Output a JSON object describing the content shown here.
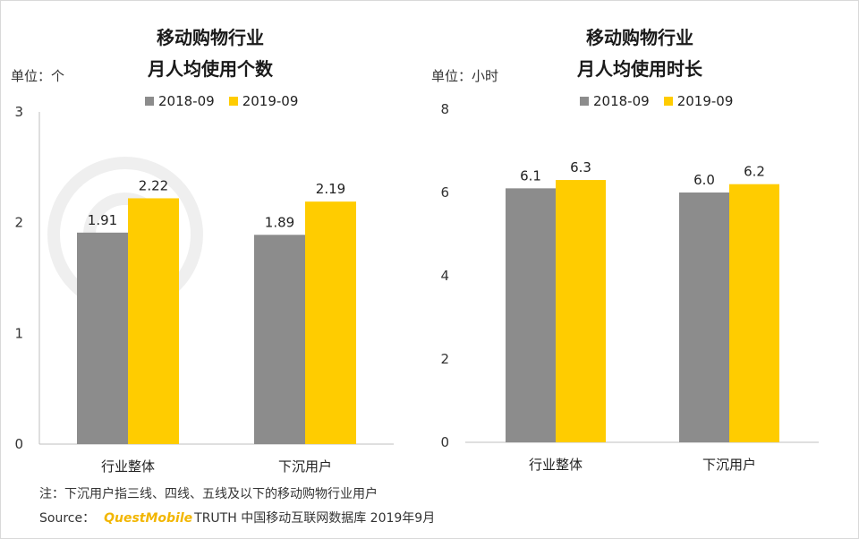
{
  "footnote": "注：下沉用户指三线、四线、五线及以下的移动购物行业用户",
  "source": {
    "prefix": "Source：",
    "brand": "QuestMobile",
    "suffix": "TRUTH 中国移动互联网数据库 2019年9月"
  },
  "colors": {
    "series_2018": "#8c8c8c",
    "series_2019": "#ffcc00"
  },
  "chart_data": [
    {
      "type": "bar",
      "title_line1": "移动购物行业",
      "title_line2": "月人均使用个数",
      "unit_label": "单位：个",
      "categories": [
        "行业整体",
        "下沉用户"
      ],
      "series": [
        {
          "name": "2018-09",
          "values": [
            1.91,
            1.89
          ],
          "labels": [
            "1.91",
            "1.89"
          ]
        },
        {
          "name": "2019-09",
          "values": [
            2.22,
            2.19
          ],
          "labels": [
            "2.22",
            "2.19"
          ]
        }
      ],
      "ylim": [
        0,
        3
      ],
      "yticks": [
        "0",
        "1",
        "2",
        "3"
      ],
      "legend": "top-center",
      "grid": false
    },
    {
      "type": "bar",
      "title_line1": "移动购物行业",
      "title_line2": "月人均使用时长",
      "unit_label": "单位：小时",
      "categories": [
        "行业整体",
        "下沉用户"
      ],
      "series": [
        {
          "name": "2018-09",
          "values": [
            6.1,
            6.0
          ],
          "labels": [
            "6.1",
            "6.0"
          ]
        },
        {
          "name": "2019-09",
          "values": [
            6.3,
            6.2
          ],
          "labels": [
            "6.3",
            "6.2"
          ]
        }
      ],
      "ylim": [
        0,
        8
      ],
      "yticks": [
        "0",
        "2",
        "4",
        "6",
        "8"
      ],
      "legend": "top-center",
      "grid": false
    }
  ]
}
